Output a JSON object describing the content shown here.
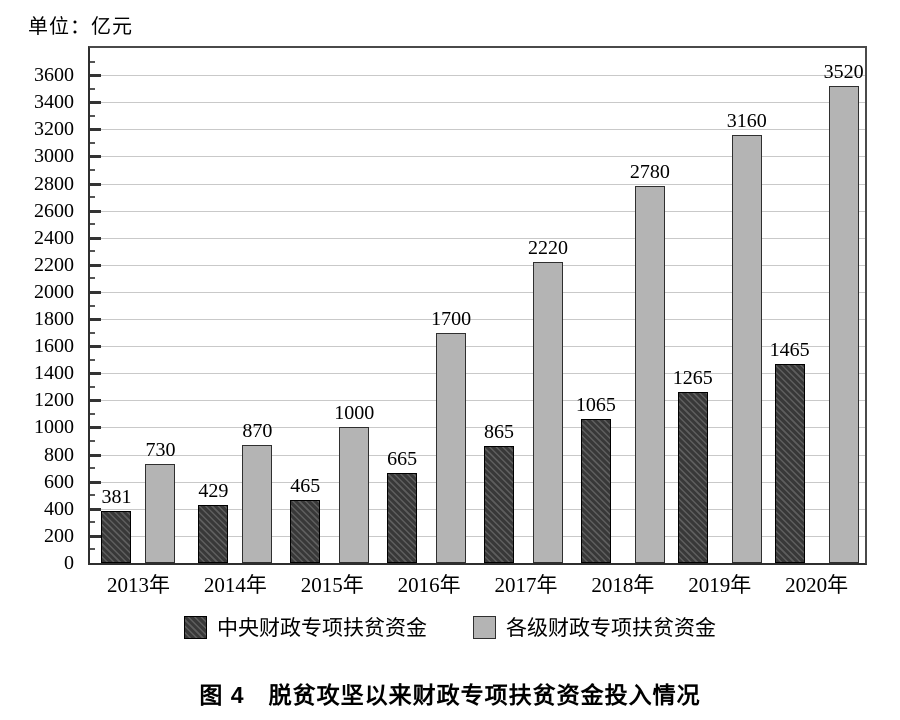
{
  "unit_label": "单位：亿元",
  "caption": "图 4　脱贫攻坚以来财政专项扶贫资金投入情况",
  "colors": {
    "dark_bar": "#3d3d3d",
    "dark_bar_hatch": "#5e5e5e",
    "light_bar": "#b4b4b4",
    "gridline": "#c9c9c9",
    "axis": "#2f2f2f",
    "text": "#000000"
  },
  "chart_data": {
    "type": "bar",
    "title": "图 4　脱贫攻坚以来财政专项扶贫资金投入情况",
    "ylabel": "单位：亿元",
    "xlabel": "",
    "categories": [
      "2013年",
      "2014年",
      "2015年",
      "2016年",
      "2017年",
      "2018年",
      "2019年",
      "2020年"
    ],
    "series": [
      {
        "name": "中央财政专项扶贫资金",
        "style": "dark-hatched",
        "values": [
          381,
          429,
          465,
          665,
          865,
          1065,
          1265,
          1465
        ]
      },
      {
        "name": "各级财政专项扶贫资金",
        "style": "light-solid",
        "values": [
          730,
          870,
          1000,
          1700,
          2220,
          2780,
          3160,
          3520
        ]
      }
    ],
    "ylim": [
      0,
      3800
    ],
    "ytick_step": 200,
    "ytick_max": 3600,
    "minor_tick_step": 100,
    "grid": true,
    "bar_value_labels": true,
    "legend_position": "bottom"
  }
}
